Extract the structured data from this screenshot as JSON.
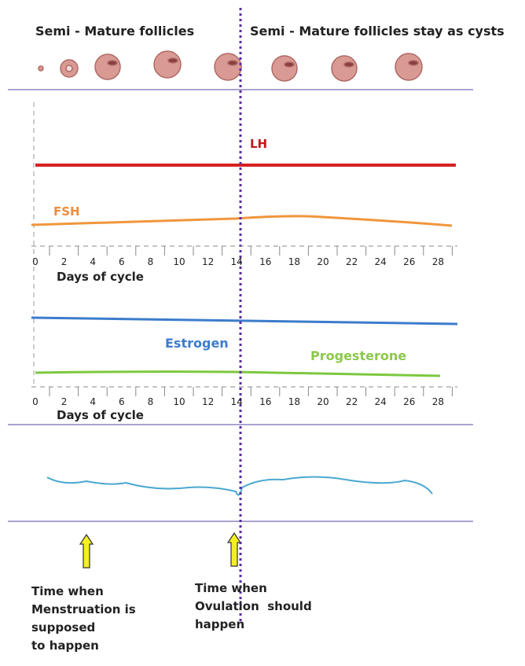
{
  "header": {
    "left": "Semi - Mature follicles",
    "right": "Semi - Mature follicles stay as cysts"
  },
  "panel1": {
    "lh": "LH",
    "fsh": "FSH",
    "axis": {
      "ticks": [
        0,
        2,
        4,
        6,
        8,
        10,
        12,
        14,
        16,
        18,
        20,
        22,
        24,
        26,
        28
      ],
      "title": "Days of cycle"
    }
  },
  "panel2": {
    "estrogen": "Estrogen",
    "progesterone": "Progesterone",
    "axis": {
      "ticks": [
        0,
        2,
        4,
        6,
        8,
        10,
        12,
        14,
        16,
        18,
        20,
        22,
        24,
        26,
        28
      ],
      "title": "Days of cycle"
    }
  },
  "notes": [
    {
      "lines": [
        "Time when",
        "Menstruation is",
        "supposed",
        "to happen"
      ]
    },
    {
      "lines": [
        "Time when",
        "Ovulation  should",
        "happen"
      ]
    }
  ]
}
